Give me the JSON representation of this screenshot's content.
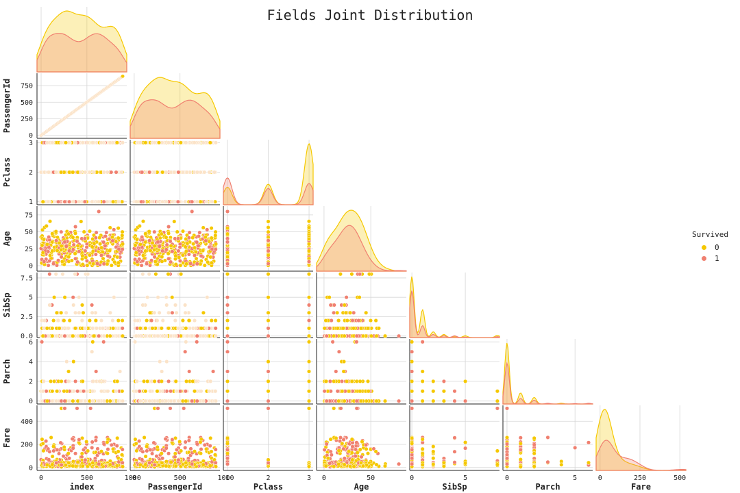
{
  "chart_data": {
    "type": "pairplot",
    "title": "Fields Joint Distribution",
    "fields": [
      "index",
      "PassengerId",
      "Pclass",
      "Age",
      "SibSp",
      "Parch",
      "Fare"
    ],
    "hue": "Survived",
    "hue_levels": [
      {
        "label": "0",
        "color": "#f5c800"
      },
      {
        "label": "1",
        "color": "#f08070"
      }
    ],
    "axis_ranges": {
      "index": [
        -45,
        935
      ],
      "PassengerId": [
        -44,
        936
      ],
      "Pclass": [
        0.9,
        3.1
      ],
      "Age": [
        -8,
        88
      ],
      "SibSp": [
        -0.2,
        8.2
      ],
      "Parch": [
        -0.3,
        6.3
      ],
      "Fare": [
        -25,
        538
      ]
    },
    "ticks": {
      "index": [
        0,
        500,
        1000
      ],
      "PassengerId": [
        0,
        250,
        500,
        750
      ],
      "Pclass": [
        1,
        2,
        3
      ],
      "Age": [
        0,
        25,
        50,
        75
      ],
      "SibSp": [
        0.0,
        2.5,
        5.0,
        7.5
      ],
      "Parch": [
        0,
        2,
        4,
        6
      ],
      "Fare": [
        0,
        200,
        400
      ]
    },
    "xticks": {
      "index": [
        0,
        500,
        1000
      ],
      "PassengerId": [
        0,
        500,
        1000
      ],
      "Pclass": [
        1,
        2,
        3
      ],
      "Age": [
        0,
        50
      ],
      "SibSp": [
        0,
        5
      ],
      "Parch": [
        0,
        5
      ],
      "Fare": [
        0,
        250,
        500
      ]
    },
    "distributions": {
      "SibSp_values": [
        0,
        1,
        2,
        3,
        4,
        5,
        8
      ],
      "Parch_values": [
        0,
        1,
        2,
        3,
        4,
        5,
        6
      ],
      "Pclass_values": [
        1,
        2,
        3
      ],
      "Age_max": 80,
      "Fare_max": 512,
      "index_max": 890,
      "PassengerId_max": 891
    },
    "grid": true,
    "corner": true,
    "legend_position": "right"
  }
}
